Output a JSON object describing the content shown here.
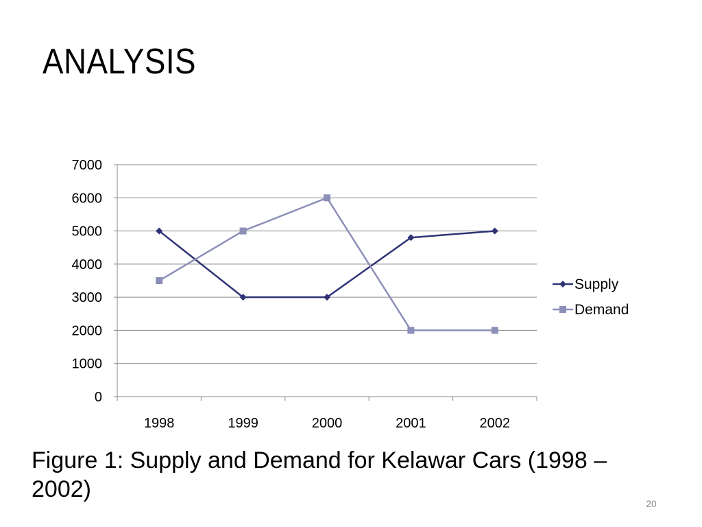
{
  "slide": {
    "title": "ANALYSIS",
    "caption": "Figure 1: Supply and Demand for Kelawar Cars (1998 – 2002)",
    "page_number": "20"
  },
  "chart_data": {
    "type": "line",
    "title": "",
    "xlabel": "",
    "ylabel": "",
    "categories": [
      "1998",
      "1999",
      "2000",
      "2001",
      "2002"
    ],
    "ylim": [
      0,
      7000
    ],
    "yticks": [
      0,
      1000,
      2000,
      3000,
      4000,
      5000,
      6000,
      7000
    ],
    "grid": "horizontal",
    "legend": "right",
    "series": [
      {
        "name": "Supply",
        "values": [
          5000,
          3000,
          3000,
          4800,
          5000
        ],
        "color": "#2e3374",
        "marker": "diamond"
      },
      {
        "name": "Demand",
        "values": [
          3500,
          5000,
          6000,
          2000,
          2000
        ],
        "color": "#8c8fb8",
        "marker": "square"
      }
    ]
  }
}
